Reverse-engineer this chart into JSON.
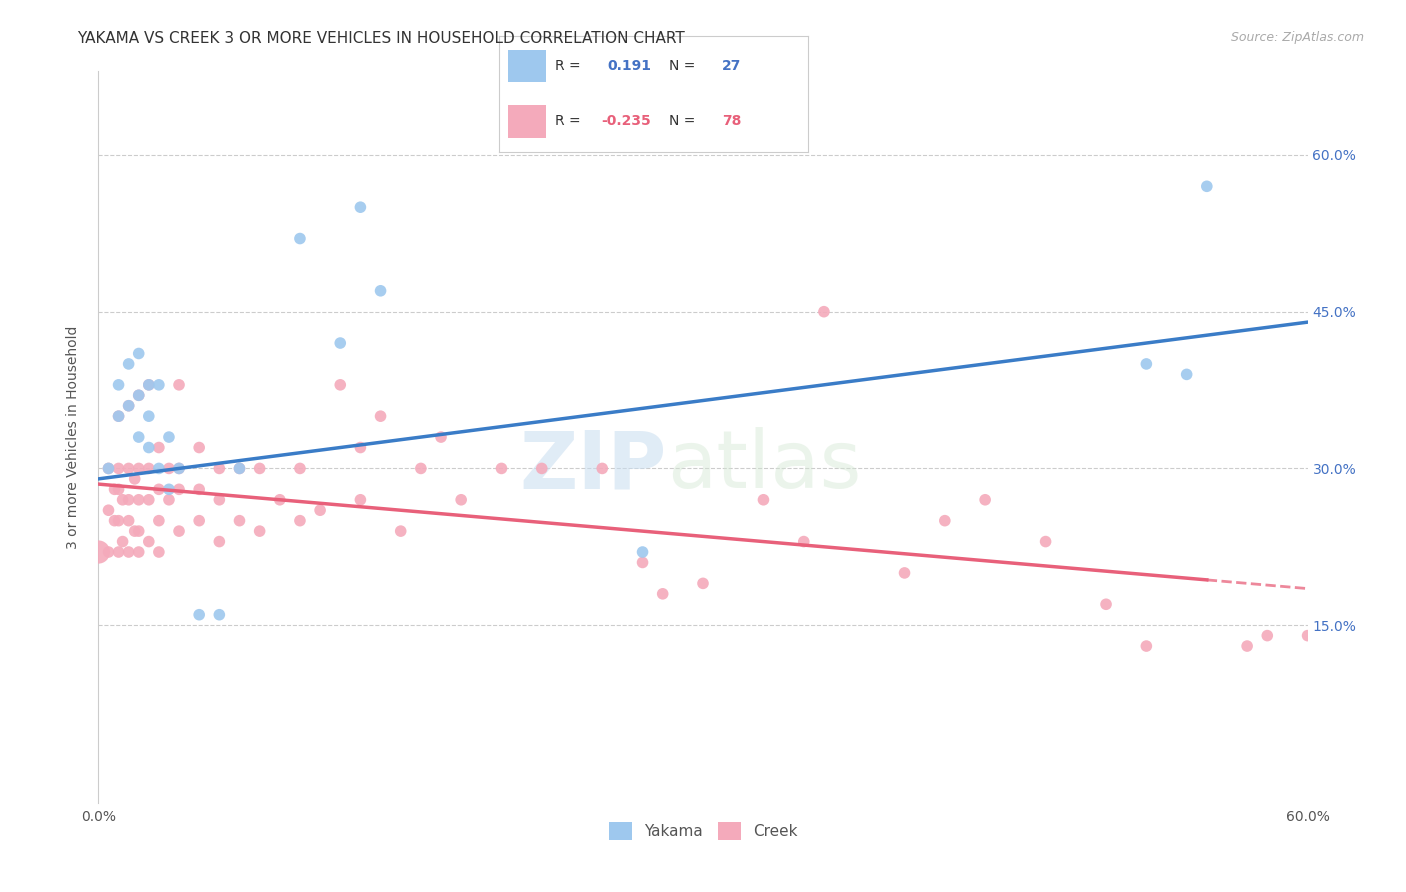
{
  "title": "YAKAMA VS CREEK 3 OR MORE VEHICLES IN HOUSEHOLD CORRELATION CHART",
  "source": "Source: ZipAtlas.com",
  "ylabel": "3 or more Vehicles in Household",
  "xlim": [
    0.0,
    0.6
  ],
  "ylim": [
    -0.02,
    0.68
  ],
  "ytick_labels": [
    "15.0%",
    "30.0%",
    "45.0%",
    "60.0%"
  ],
  "ytick_values": [
    0.15,
    0.3,
    0.45,
    0.6
  ],
  "background_color": "#ffffff",
  "watermark_zip": "ZIP",
  "watermark_atlas": "atlas",
  "yakama_color": "#9EC8EE",
  "creek_color": "#F4AABB",
  "yakama_line_color": "#3A7CC7",
  "creek_line_color": "#E8607A",
  "yakama_R": 0.191,
  "yakama_N": 27,
  "creek_R": -0.235,
  "creek_N": 78,
  "legend_label_yakama": "Yakama",
  "legend_label_creek": "Creek",
  "yakama_x": [
    0.005,
    0.01,
    0.01,
    0.015,
    0.015,
    0.02,
    0.02,
    0.02,
    0.025,
    0.025,
    0.025,
    0.03,
    0.03,
    0.035,
    0.035,
    0.04,
    0.05,
    0.06,
    0.07,
    0.1,
    0.12,
    0.13,
    0.14,
    0.27,
    0.52,
    0.54,
    0.55
  ],
  "yakama_y": [
    0.3,
    0.35,
    0.38,
    0.36,
    0.4,
    0.33,
    0.37,
    0.41,
    0.32,
    0.35,
    0.38,
    0.3,
    0.38,
    0.28,
    0.33,
    0.3,
    0.16,
    0.16,
    0.3,
    0.52,
    0.42,
    0.55,
    0.47,
    0.22,
    0.4,
    0.39,
    0.57
  ],
  "creek_x": [
    0.005,
    0.005,
    0.005,
    0.008,
    0.008,
    0.01,
    0.01,
    0.01,
    0.01,
    0.01,
    0.012,
    0.012,
    0.015,
    0.015,
    0.015,
    0.015,
    0.015,
    0.018,
    0.018,
    0.02,
    0.02,
    0.02,
    0.02,
    0.02,
    0.025,
    0.025,
    0.025,
    0.025,
    0.03,
    0.03,
    0.03,
    0.03,
    0.035,
    0.035,
    0.04,
    0.04,
    0.04,
    0.04,
    0.05,
    0.05,
    0.05,
    0.06,
    0.06,
    0.06,
    0.07,
    0.07,
    0.08,
    0.08,
    0.09,
    0.1,
    0.1,
    0.11,
    0.12,
    0.13,
    0.13,
    0.14,
    0.15,
    0.16,
    0.17,
    0.18,
    0.2,
    0.22,
    0.25,
    0.27,
    0.28,
    0.3,
    0.33,
    0.35,
    0.36,
    0.4,
    0.42,
    0.44,
    0.47,
    0.5,
    0.52,
    0.57,
    0.58,
    0.6
  ],
  "creek_y": [
    0.22,
    0.26,
    0.3,
    0.25,
    0.28,
    0.22,
    0.25,
    0.28,
    0.3,
    0.35,
    0.23,
    0.27,
    0.22,
    0.25,
    0.27,
    0.3,
    0.36,
    0.24,
    0.29,
    0.22,
    0.24,
    0.27,
    0.3,
    0.37,
    0.23,
    0.27,
    0.3,
    0.38,
    0.22,
    0.25,
    0.28,
    0.32,
    0.27,
    0.3,
    0.24,
    0.28,
    0.3,
    0.38,
    0.25,
    0.28,
    0.32,
    0.23,
    0.27,
    0.3,
    0.25,
    0.3,
    0.24,
    0.3,
    0.27,
    0.25,
    0.3,
    0.26,
    0.38,
    0.27,
    0.32,
    0.35,
    0.24,
    0.3,
    0.33,
    0.27,
    0.3,
    0.3,
    0.3,
    0.21,
    0.18,
    0.19,
    0.27,
    0.23,
    0.45,
    0.2,
    0.25,
    0.27,
    0.23,
    0.17,
    0.13,
    0.13,
    0.14,
    0.14
  ],
  "creek_sizes_large": [
    0
  ],
  "creek_large_x": [
    0.0
  ],
  "creek_large_y": [
    0.22
  ],
  "dot_size": 70,
  "large_dot_size": 280,
  "grid_color": "#cccccc",
  "title_fontsize": 11,
  "axis_label_fontsize": 10,
  "tick_fontsize": 10,
  "source_fontsize": 9,
  "legend_fontsize": 11
}
